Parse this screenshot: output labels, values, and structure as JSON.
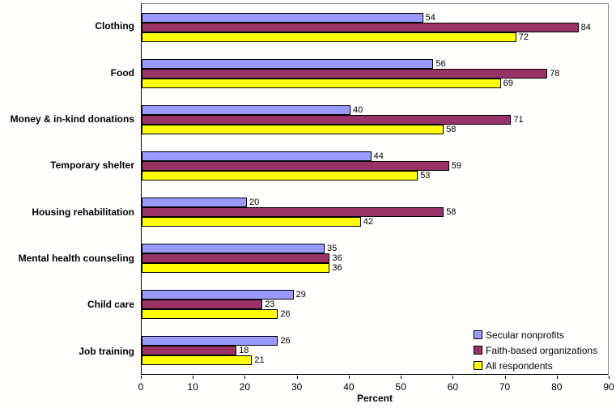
{
  "chart_data": {
    "type": "bar",
    "orientation": "horizontal",
    "title": "",
    "xlabel": "Percent",
    "ylabel": "",
    "xlim": [
      0,
      90
    ],
    "xticks": [
      0,
      10,
      20,
      30,
      40,
      50,
      60,
      70,
      80,
      90
    ],
    "grid": false,
    "value_labels": true,
    "legend_position": "inside-bottom-right",
    "categories": [
      "Clothing",
      "Food",
      "Money & in-kind donations",
      "Temporary shelter",
      "Housing rehabilitation",
      "Mental health counseling",
      "Child care",
      "Job training"
    ],
    "series": [
      {
        "name": "Secular nonprofits",
        "color": "#9999FF",
        "values": [
          54,
          56,
          40,
          44,
          20,
          35,
          29,
          26
        ]
      },
      {
        "name": "Faith-based organizations",
        "color": "#993366",
        "values": [
          84,
          78,
          71,
          59,
          58,
          36,
          23,
          18
        ]
      },
      {
        "name": "All respondents",
        "color": "#FFFF00",
        "values": [
          72,
          69,
          58,
          53,
          42,
          36,
          26,
          21
        ]
      }
    ],
    "colors": {
      "bar_border": "#000000",
      "plot_border": "#848284",
      "axis_line": "#000000",
      "background": "#FFFFFE"
    }
  }
}
